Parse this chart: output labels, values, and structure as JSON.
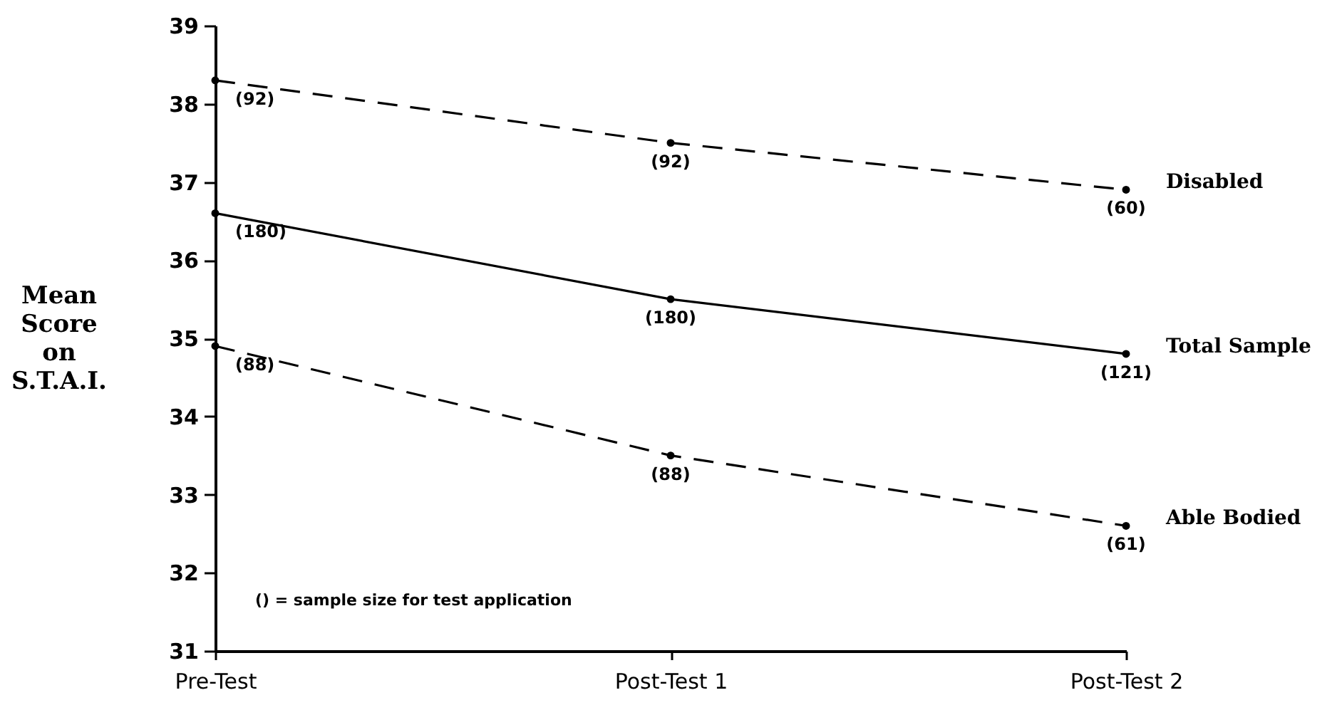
{
  "chart_data": {
    "type": "line",
    "ylabel": "Mean Score on S.T.A.I.",
    "categories": [
      "Pre-Test",
      "Post-Test 1",
      "Post-Test 2"
    ],
    "series": [
      {
        "name": "Disabled",
        "color": "#000000",
        "line_style": "dashed",
        "values": [
          38.3,
          37.5,
          36.9
        ]
      },
      {
        "name": "Total Sample",
        "color": "#000000",
        "line_style": "solid",
        "values": [
          36.6,
          35.5,
          34.8
        ]
      },
      {
        "name": "Able Bodied",
        "color": "#000000",
        "line_style": "dashed",
        "values": [
          34.9,
          33.5,
          32.6
        ]
      }
    ],
    "ylim": [
      31,
      39
    ],
    "yticks": [
      31,
      32,
      33,
      34,
      35,
      36,
      37,
      38,
      39
    ],
    "grid": false,
    "marker": "circle",
    "annotations": [
      {
        "text": "(92)",
        "x": "Pre-Test",
        "y": 38.3
      },
      {
        "text": "(92)",
        "x": "Post-Test 1",
        "y": 37.5
      },
      {
        "text": "(60)",
        "x": "Post-Test 2",
        "y": 36.9
      },
      {
        "text": "(180)",
        "x": "Pre-Test",
        "y": 36.6
      },
      {
        "text": "(180)",
        "x": "Post-Test 1",
        "y": 35.5
      },
      {
        "text": "(121)",
        "x": "Post-Test 2",
        "y": 34.8
      },
      {
        "text": "(88)",
        "x": "Pre-Test",
        "y": 34.9
      },
      {
        "text": "(88)",
        "x": "Post-Test 1",
        "y": 33.5
      },
      {
        "text": "(61)",
        "x": "Post-Test 2",
        "y": 32.6
      },
      "() = sample size for test application"
    ]
  }
}
